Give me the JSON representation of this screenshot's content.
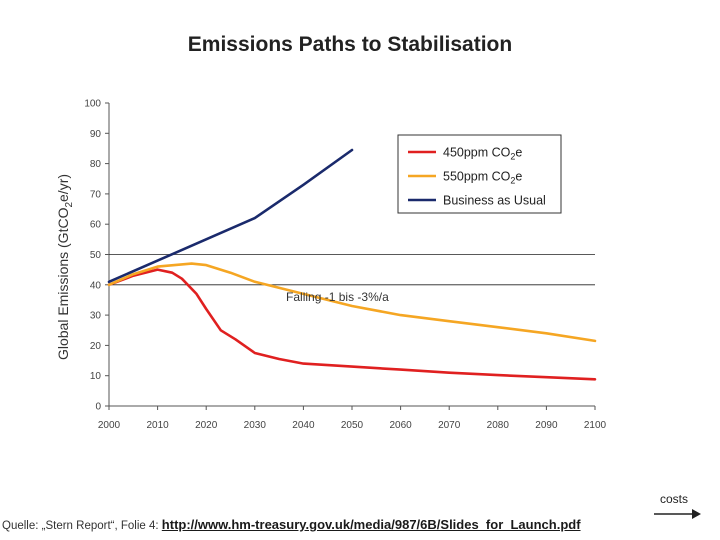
{
  "chart_data": {
    "type": "line",
    "title": "Emissions Paths to Stabilisation",
    "xlabel": "",
    "ylabel": "Global Emissions (GtCO2e/yr)",
    "xlim": [
      2000,
      2100
    ],
    "ylim": [
      0,
      100
    ],
    "x_ticks": [
      2000,
      2010,
      2020,
      2030,
      2040,
      2050,
      2060,
      2070,
      2080,
      2090,
      2100
    ],
    "y_ticks": [
      0,
      10,
      20,
      30,
      40,
      50,
      60,
      70,
      80,
      90,
      100
    ],
    "grid_y_values": [
      40,
      50
    ],
    "legend_position": "top-right",
    "series": [
      {
        "name": "450ppm CO2e",
        "color": "#e02020",
        "x": [
          2000,
          2005,
          2010,
          2013,
          2015,
          2018,
          2020,
          2023,
          2026,
          2030,
          2035,
          2040,
          2045,
          2050,
          2060,
          2070,
          2080,
          2090,
          2100
        ],
        "values": [
          40,
          43,
          45,
          44,
          42,
          37,
          32,
          25,
          22,
          17.5,
          15.5,
          14,
          13.5,
          13,
          12,
          11,
          10.2,
          9.5,
          8.8
        ]
      },
      {
        "name": "550ppm CO2e",
        "color": "#f5a623",
        "x": [
          2000,
          2005,
          2010,
          2017,
          2020,
          2025,
          2030,
          2040,
          2050,
          2060,
          2070,
          2080,
          2090,
          2100
        ],
        "values": [
          40,
          43.5,
          46,
          47,
          46.5,
          44,
          41,
          37,
          33,
          30,
          28,
          26,
          24,
          21.5
        ]
      },
      {
        "name": "Business as Usual",
        "color": "#1a2a6c",
        "x": [
          2000,
          2010,
          2020,
          2030,
          2040,
          2050
        ],
        "values": [
          41,
          48,
          55,
          62,
          73,
          84.5
        ]
      }
    ],
    "annotations": [
      {
        "text": "Falling -1 bis -3%/a",
        "x": 2047,
        "y": 36
      }
    ]
  },
  "legend": [
    {
      "label": "450ppm CO",
      "sub": "2",
      "suffix": "e",
      "color": "#e02020"
    },
    {
      "label": "550ppm CO",
      "sub": "2",
      "suffix": "e",
      "color": "#f5a623"
    },
    {
      "label": "Business as Usual",
      "sub": "",
      "suffix": "",
      "color": "#1a2a6c"
    }
  ],
  "ylabel_parts": {
    "prefix": "Global Emissions (GtCO",
    "sub": "2",
    "suffix": "e/yr)"
  },
  "costs_label": "costs",
  "source": {
    "prefix": "Quelle: „Stern Report“, Folie 4: ",
    "link_text": "http://www.hm-treasury.gov.uk/media/987/6B/Slides_for_Launch.pdf"
  }
}
